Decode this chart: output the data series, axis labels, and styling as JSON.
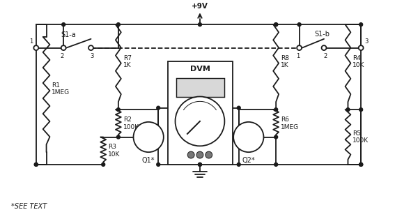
{
  "background_color": "#ffffff",
  "line_color": "#1a1a1a",
  "text_color": "#1a1a1a",
  "fig_width": 5.67,
  "fig_height": 3.14,
  "dpi": 100,
  "labels": {
    "power": "+9V",
    "dvm": "DVM",
    "q1": "Q1*",
    "q2": "Q2*",
    "r1": "R1\n1MEG",
    "r2": "R2\n100K",
    "r3": "R3\n10K",
    "r4": "R4\n10K",
    "r5": "R5\n100K",
    "r6": "R6\n1MEG",
    "r7": "R7\n1K",
    "r8": "R8\n1K",
    "s1a": "S1-a",
    "s1b": "S1-b",
    "note": "*SEE TEXT"
  }
}
